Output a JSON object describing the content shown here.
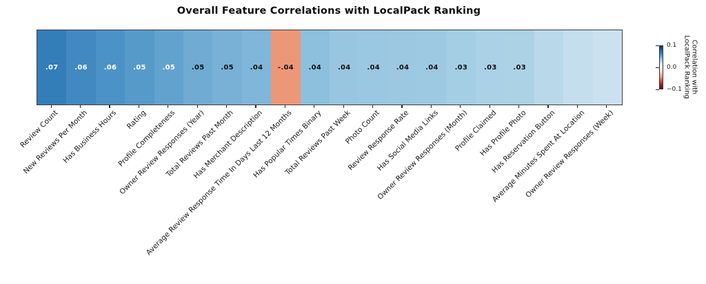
{
  "chart_data": {
    "type": "heatmap",
    "title": "Overall Feature Correlations with LocalPack Ranking",
    "categories": [
      "Review Count",
      "New Reviews Per Month",
      "Has Business Hours",
      "Rating",
      "Profile Completeness",
      "Owner Review Responses (Year)",
      "Total Reviews Past Month",
      "Has Merchant Description",
      "Average Review Response Time In Days Last 12 Months",
      "Has Popular Times Binary",
      "Total Reviews Past Week",
      "Photo Count",
      "Review Response Rate",
      "Has Social Media Links",
      "Owner Review Responses (Month)",
      "Profile Claimed",
      "Has Profile Photo",
      "Has Reservation Button",
      "Average Minutes Spent At Location",
      "Owner Review Responses (Week)"
    ],
    "values": [
      0.07,
      0.063,
      0.059,
      0.055,
      0.052,
      0.048,
      0.046,
      0.043,
      -0.044,
      0.042,
      0.037,
      0.036,
      0.035,
      0.035,
      0.028,
      0.026,
      0.025,
      0.02,
      0.016,
      0.014
    ],
    "value_labels": [
      ".07",
      ".06",
      ".06",
      ".05",
      ".05",
      ".05",
      ".05",
      ".04",
      "-.04",
      ".04",
      ".04",
      ".04",
      ".04",
      ".04",
      ".03",
      ".03",
      ".03",
      "",
      "",
      ""
    ],
    "cell_colors": [
      "#337DB9",
      "#4189C0",
      "#4B92C6",
      "#569ACA",
      "#62A2CF",
      "#6FABD3",
      "#79B1D6",
      "#80B6D9",
      "#EC9778",
      "#8CC0DD",
      "#98C6E0",
      "#9AC7E1",
      "#9CC8E1",
      "#9EC9E2",
      "#A4CEE4",
      "#ABD1E6",
      "#ACD2E6",
      "#B9D9EA",
      "#C4DEED",
      "#CBE1EF"
    ],
    "annotation_colors": [
      "#ffffff",
      "#ffffff",
      "#ffffff",
      "#ffffff",
      "#ffffff",
      "#111111",
      "#111111",
      "#111111",
      "#111111",
      "#111111",
      "#111111",
      "#111111",
      "#111111",
      "#111111",
      "#111111",
      "#111111",
      "#111111",
      "",
      "",
      ""
    ],
    "axis_range": {
      "vmin": -0.1,
      "vmax": 0.1
    },
    "grid": false,
    "colormap": "RdBu",
    "colorbar": {
      "ticks": [
        "0.1",
        "0.0",
        "−0.1"
      ],
      "label_line1": "Correlation with",
      "label_line2": "LocalPack Ranking",
      "position": "right"
    }
  }
}
